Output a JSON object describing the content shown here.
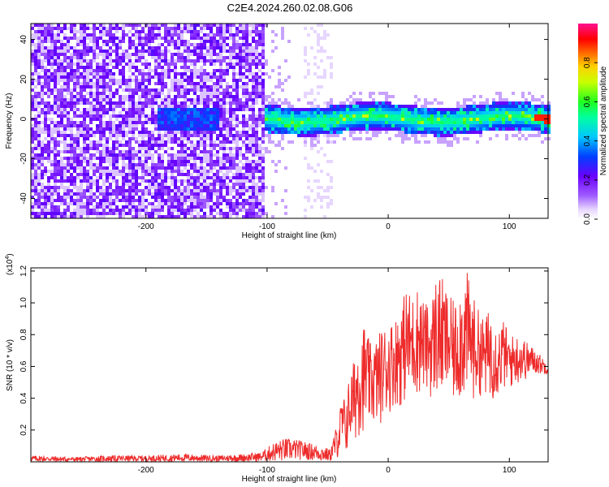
{
  "figure": {
    "title": "C2E4.2024.260.02.08.G06"
  },
  "colors": {
    "snr_line": "#ee2b2b",
    "axis": "#000000",
    "spectrogram_low": "#e6d6ff",
    "spectrogram_mid": "#7a1cff",
    "spectrogram_high": "#ff0000"
  },
  "chart_data": [
    {
      "type": "heatmap",
      "title": "C2E4.2024.260.02.08.G06",
      "xlabel": "Height of straight line (km)",
      "ylabel": "Frequency (Hz)",
      "xlim": [
        -295,
        132
      ],
      "ylim": [
        -50,
        48
      ],
      "xticks": [
        -200,
        -100,
        0,
        100
      ],
      "xtick_labels": [
        "-200",
        "-100",
        "0",
        "100"
      ],
      "yticks": [
        -40,
        -20,
        0,
        20,
        40
      ],
      "ytick_labels": [
        "-40",
        "-20",
        "0",
        "20",
        "40"
      ],
      "colorbar": {
        "label": "Normalized spectral amplitude",
        "range": [
          0,
          1
        ],
        "ticks": [
          0.0,
          0.2,
          0.4,
          0.6,
          0.8
        ],
        "tick_labels": [
          "0.0",
          "0.2",
          "0.4",
          "0.6",
          "0.8"
        ],
        "colormap": "rainbow (white-purple-blue-cyan-green-yellow-red-magenta)"
      },
      "regions": [
        {
          "x_range": [
            -295,
            -103
          ],
          "freq_range": [
            -50,
            48
          ],
          "level": 0.15,
          "note": "broadband speckle"
        },
        {
          "x_range": [
            -103,
            132
          ],
          "freq_center": 0,
          "freq_halfwidth": 7,
          "level": 0.5,
          "note": "narrow band near 0 Hz"
        },
        {
          "x_range": [
            -70,
            -45
          ],
          "freq_range": [
            -50,
            48
          ],
          "level": 0.05,
          "note": "faint vertical stripes"
        }
      ]
    },
    {
      "type": "line",
      "xlabel": "Height of straight line (km)",
      "ylabel": "SNR (10 * v/v)",
      "yscale_label": "(x10",
      "yscale_exponent": "4",
      "xlim": [
        -295,
        132
      ],
      "ylim": [
        0,
        1.22
      ],
      "xticks": [
        -200,
        -100,
        0,
        100
      ],
      "xtick_labels": [
        "-200",
        "-100",
        "0",
        "100"
      ],
      "yticks": [
        0.2,
        0.4,
        0.6,
        0.8,
        1.0,
        1.2
      ],
      "ytick_labels": [
        "0.2",
        "0.4",
        "0.6",
        "0.8",
        "1.0",
        "1.2"
      ],
      "series": [
        {
          "color": "#ee2b2b",
          "x": [
            -295,
            -260,
            -230,
            -200,
            -170,
            -140,
            -120,
            -105,
            -95,
            -85,
            -75,
            -65,
            -55,
            -48,
            -42,
            -38,
            -35,
            -32,
            -28,
            -25,
            -20,
            -15,
            -10,
            -5,
            0,
            5,
            10,
            15,
            20,
            25,
            30,
            35,
            40,
            45,
            50,
            55,
            60,
            65,
            70,
            75,
            80,
            85,
            90,
            95,
            100,
            105,
            110,
            115,
            120,
            125,
            132
          ],
          "y_low": [
            0.0,
            0.0,
            0.0,
            0.0,
            0.0,
            0.0,
            0.0,
            0.0,
            0.0,
            0.0,
            0.01,
            0.01,
            0.0,
            0.0,
            0.02,
            0.05,
            0.04,
            0.1,
            0.12,
            0.15,
            0.2,
            0.22,
            0.22,
            0.25,
            0.3,
            0.35,
            0.35,
            0.38,
            0.4,
            0.42,
            0.45,
            0.4,
            0.4,
            0.38,
            0.42,
            0.35,
            0.38,
            0.4,
            0.38,
            0.42,
            0.4,
            0.38,
            0.4,
            0.45,
            0.45,
            0.48,
            0.5,
            0.52,
            0.55,
            0.55,
            0.55
          ],
          "y_high": [
            0.04,
            0.03,
            0.04,
            0.04,
            0.05,
            0.04,
            0.05,
            0.06,
            0.12,
            0.15,
            0.14,
            0.12,
            0.1,
            0.08,
            0.25,
            0.42,
            0.4,
            0.55,
            0.65,
            0.8,
            0.88,
            0.75,
            0.78,
            0.85,
            0.88,
            0.9,
            0.98,
            1.1,
            1.05,
            1.12,
            1.0,
            1.0,
            1.2,
            1.15,
            1.05,
            1.0,
            1.15,
            1.2,
            1.05,
            0.95,
            0.9,
            1.0,
            0.85,
            0.9,
            0.8,
            0.8,
            0.8,
            0.75,
            0.72,
            0.68,
            0.62
          ]
        }
      ]
    }
  ]
}
